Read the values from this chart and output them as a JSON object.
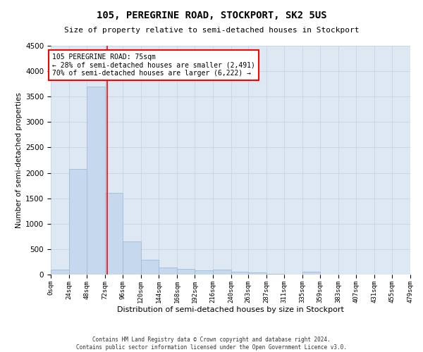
{
  "title": "105, PEREGRINE ROAD, STOCKPORT, SK2 5US",
  "subtitle": "Size of property relative to semi-detached houses in Stockport",
  "xlabel": "Distribution of semi-detached houses by size in Stockport",
  "ylabel": "Number of semi-detached properties",
  "footer_line1": "Contains HM Land Registry data © Crown copyright and database right 2024.",
  "footer_line2": "Contains public sector information licensed under the Open Government Licence v3.0.",
  "bar_color": "#c5d8ed",
  "bar_edge_color": "#a0bcd8",
  "grid_color": "#c8d8e8",
  "background_color": "#dde8f3",
  "annotation_text_line1": "105 PEREGRINE ROAD: 75sqm",
  "annotation_text_line2": "← 28% of semi-detached houses are smaller (2,491)",
  "annotation_text_line3": "70% of semi-detached houses are larger (6,222) →",
  "property_size": 75,
  "bins": [
    0,
    24,
    48,
    72,
    96,
    120,
    144,
    168,
    192,
    216,
    240,
    263,
    287,
    311,
    335,
    359,
    383,
    407,
    431,
    455,
    479
  ],
  "bin_labels": [
    "0sqm",
    "24sqm",
    "48sqm",
    "72sqm",
    "96sqm",
    "120sqm",
    "144sqm",
    "168sqm",
    "192sqm",
    "216sqm",
    "240sqm",
    "263sqm",
    "287sqm",
    "311sqm",
    "335sqm",
    "359sqm",
    "383sqm",
    "407sqm",
    "431sqm",
    "455sqm",
    "479sqm"
  ],
  "counts": [
    100,
    2080,
    3700,
    1600,
    650,
    285,
    145,
    110,
    90,
    100,
    60,
    35,
    20,
    0,
    50,
    0,
    0,
    0,
    0,
    0
  ],
  "ylim": [
    0,
    4500
  ],
  "yticks": [
    0,
    500,
    1000,
    1500,
    2000,
    2500,
    3000,
    3500,
    4000,
    4500
  ]
}
